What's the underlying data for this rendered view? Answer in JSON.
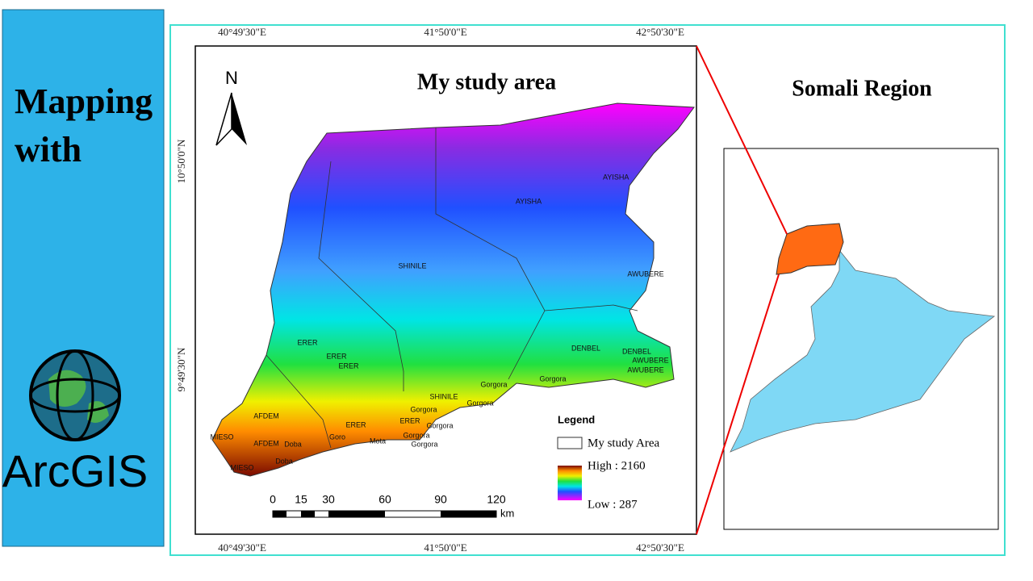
{
  "sidebar": {
    "title_line1": "Mapping",
    "title_line2": "with",
    "logo_text": "ArcGIS"
  },
  "map": {
    "title": "My study area",
    "north_label": "N",
    "x_labels_top": [
      "40°49'30\"E",
      "41°50'0\"E",
      "42°50'30\"E"
    ],
    "x_labels_bottom": [
      "40°49'30\"E",
      "41°50'0\"E",
      "42°50'30\"E"
    ],
    "y_labels": [
      "10°50'0\"N",
      "9°49'30\"N"
    ],
    "place_labels": [
      "AYISHA",
      "AYISHA",
      "SHINILE",
      "AWUBERE",
      "DENBEL",
      "DENBEL",
      "AWUBERE",
      "AWUBERE",
      "Gorgora",
      "Gorgora",
      "SHINILE",
      "Gorgora",
      "ERER",
      "ERER",
      "ERER",
      "AFDEM",
      "MIESO",
      "AFDEM",
      "MIESO",
      "Gorgora",
      "ERER",
      "ERER",
      "Gorgora",
      "Gorgora",
      "Gorgora",
      "Doba",
      "Doba",
      "Goro",
      "Mota"
    ],
    "scale_bar": {
      "ticks": [
        "0",
        "15",
        "30",
        "60",
        "90",
        "120"
      ],
      "unit": "km"
    },
    "legend": {
      "title": "Legend",
      "boundary_label": "My study Area",
      "high_label": "High : 2160",
      "low_label": "Low : 287"
    }
  },
  "inset": {
    "title": "Somali Region"
  }
}
